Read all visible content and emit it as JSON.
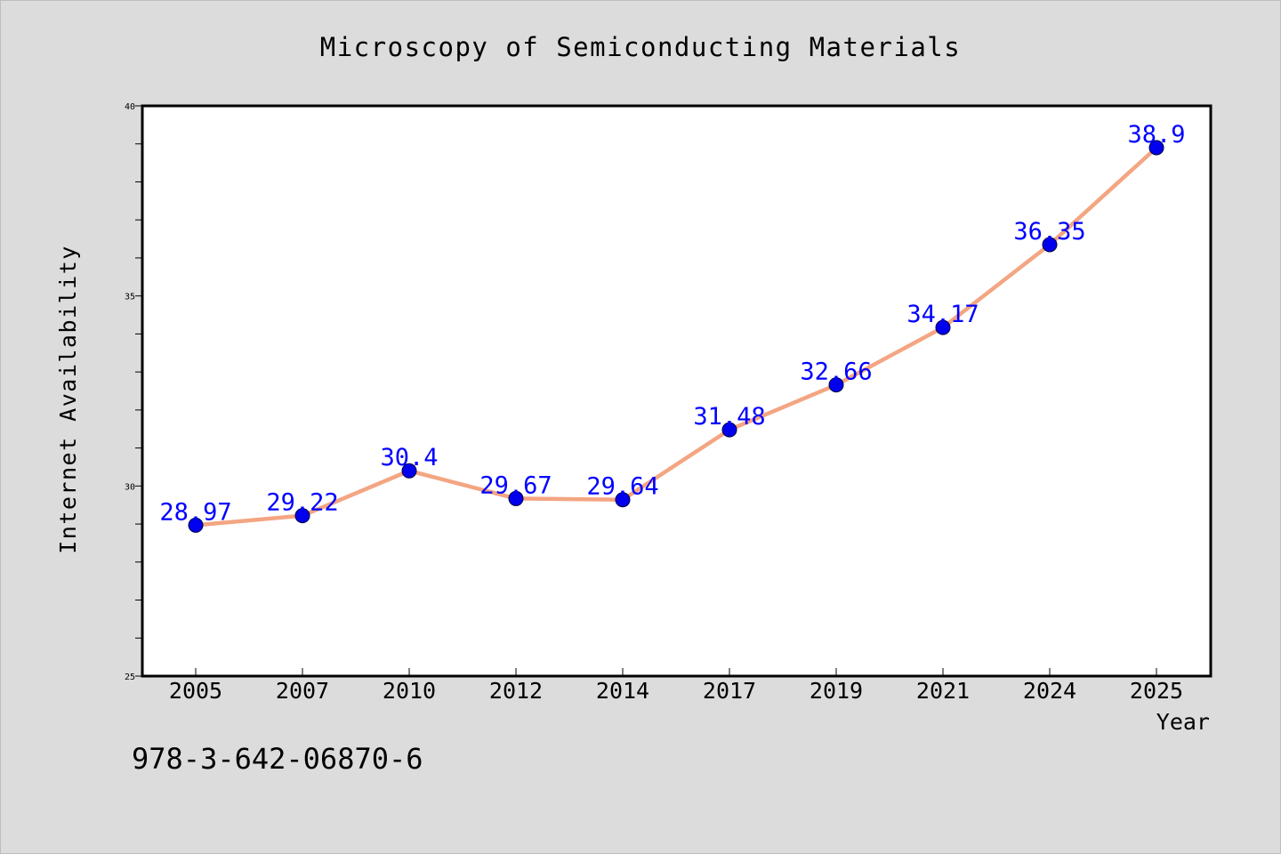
{
  "chart_data": {
    "type": "line",
    "title": "Microscopy of Semiconducting Materials",
    "xlabel": "Year",
    "ylabel": "Internet Availability",
    "categories": [
      "2005",
      "2007",
      "2010",
      "2012",
      "2014",
      "2017",
      "2019",
      "2021",
      "2024",
      "2025"
    ],
    "series": [
      {
        "values": [
          28.97,
          29.22,
          30.4,
          29.67,
          29.64,
          31.48,
          32.66,
          34.17,
          36.35,
          38.9
        ],
        "data_labels": [
          "28.97",
          "29.22",
          "30.4",
          "29.67",
          "29.64",
          "31.48",
          "32.66",
          "34.17",
          "36.35",
          "38.9"
        ]
      }
    ],
    "ylim": [
      25,
      40
    ],
    "yticks": [
      25,
      30,
      35,
      40
    ],
    "grid": false,
    "legend": "none",
    "colors": {
      "line": "#f4a582",
      "marker": "#0000ee",
      "label": "#0000ff",
      "background": "#dcdcdc",
      "plot": "#ffffff"
    }
  },
  "annotation": "978-3-642-06870-6"
}
